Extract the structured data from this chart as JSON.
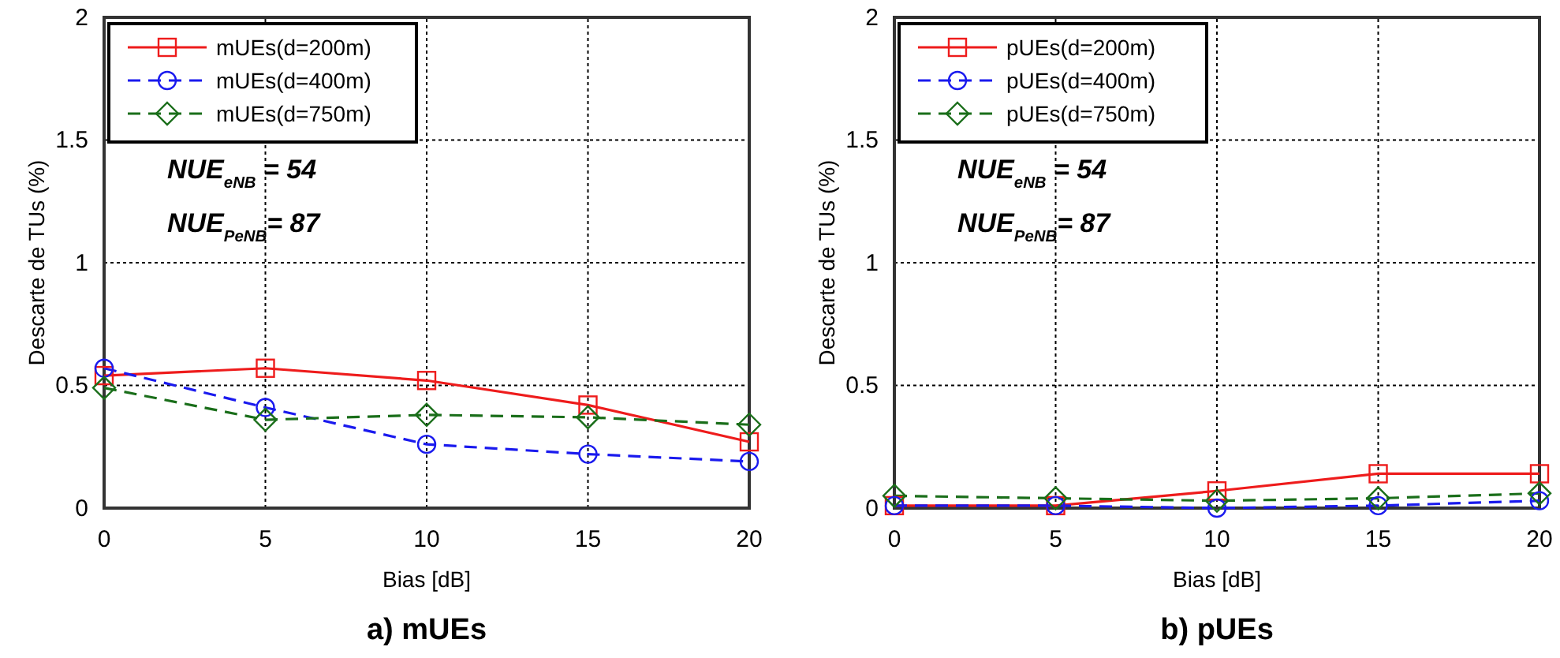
{
  "chart_data": [
    {
      "type": "line",
      "title": "a) mUEs",
      "xlabel": "Bias [dB]",
      "ylabel": "Descarte de TUs (%)",
      "x": [
        0,
        5,
        10,
        15,
        20
      ],
      "xlim": [
        0,
        20
      ],
      "xticks": [
        0,
        5,
        10,
        15,
        20
      ],
      "ylim": [
        0,
        2
      ],
      "yticks": [
        0,
        0.5,
        1,
        1.5,
        2
      ],
      "grid": true,
      "legend": "top left",
      "annotations": [
        "NUE$_{eNB}$ = 54",
        "NUE$_{PeNB}$= 87"
      ],
      "series": [
        {
          "name": "mUEs(d=200m)",
          "color": "#ee1c1c",
          "values": [
            0.54,
            0.57,
            0.52,
            0.42,
            0.27
          ],
          "marker": "square",
          "line_style": "solid"
        },
        {
          "name": "mUEs(d=400m)",
          "color": "#1a1aee",
          "values": [
            0.57,
            0.41,
            0.26,
            0.22,
            0.19
          ],
          "marker": "circle",
          "line_style": "dashed"
        },
        {
          "name": "mUEs(d=750m)",
          "color": "#1a6e1a",
          "values": [
            0.49,
            0.36,
            0.38,
            0.37,
            0.34
          ],
          "marker": "diamond",
          "line_style": "dashed"
        }
      ]
    },
    {
      "type": "line",
      "title": "b) pUEs",
      "xlabel": "Bias [dB]",
      "ylabel": "Descarte de TUs (%)",
      "x": [
        0,
        5,
        10,
        15,
        20
      ],
      "xlim": [
        0,
        20
      ],
      "xticks": [
        0,
        5,
        10,
        15,
        20
      ],
      "ylim": [
        0,
        2
      ],
      "yticks": [
        0,
        0.5,
        1,
        1.5,
        2
      ],
      "grid": true,
      "legend": "top left",
      "annotations": [
        "NUE$_{eNB}$ = 54",
        "NUE$_{PeNB}$= 87"
      ],
      "series": [
        {
          "name": "pUEs(d=200m)",
          "color": "#ee1c1c",
          "values": [
            0.01,
            0.01,
            0.07,
            0.14,
            0.14
          ],
          "marker": "square",
          "line_style": "solid"
        },
        {
          "name": "pUEs(d=400m)",
          "color": "#1a1aee",
          "values": [
            0.01,
            0.01,
            0,
            0.01,
            0.03
          ],
          "marker": "circle",
          "line_style": "dashed"
        },
        {
          "name": "pUEs(d=750m)",
          "color": "#1a6e1a",
          "values": [
            0.05,
            0.04,
            0.03,
            0.04,
            0.06
          ],
          "marker": "diamond",
          "line_style": "dashed"
        }
      ]
    }
  ]
}
